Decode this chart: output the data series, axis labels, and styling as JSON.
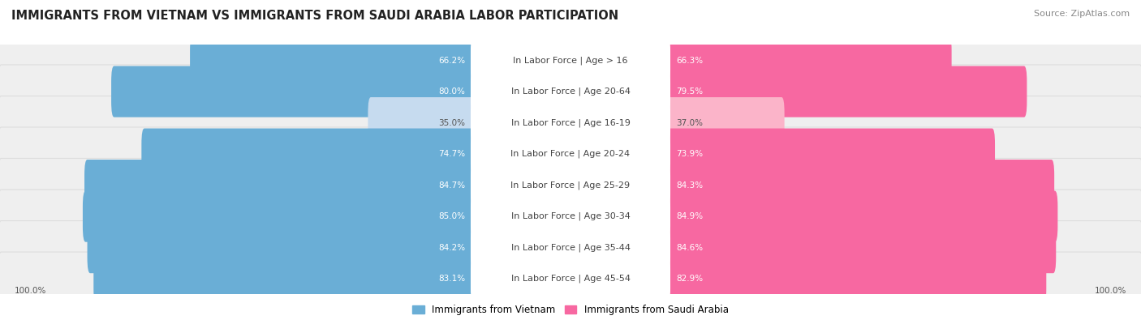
{
  "title": "IMMIGRANTS FROM VIETNAM VS IMMIGRANTS FROM SAUDI ARABIA LABOR PARTICIPATION",
  "source": "Source: ZipAtlas.com",
  "categories": [
    "In Labor Force | Age > 16",
    "In Labor Force | Age 20-64",
    "In Labor Force | Age 16-19",
    "In Labor Force | Age 20-24",
    "In Labor Force | Age 25-29",
    "In Labor Force | Age 30-34",
    "In Labor Force | Age 35-44",
    "In Labor Force | Age 45-54"
  ],
  "vietnam_values": [
    66.2,
    80.0,
    35.0,
    74.7,
    84.7,
    85.0,
    84.2,
    83.1
  ],
  "saudi_values": [
    66.3,
    79.5,
    37.0,
    73.9,
    84.3,
    84.9,
    84.6,
    82.9
  ],
  "vietnam_color": "#6aaed6",
  "vietnam_color_light": "#c6dbef",
  "saudi_color": "#f768a1",
  "saudi_color_light": "#fbb4c9",
  "row_bg_color": "#efefef",
  "row_bg_edge": "#dddddd",
  "max_value": 100.0,
  "label_bottom_left": "100.0%",
  "label_bottom_right": "100.0%",
  "legend_vietnam": "Immigrants from Vietnam",
  "legend_saudi": "Immigrants from Saudi Arabia",
  "title_fontsize": 10.5,
  "source_fontsize": 8,
  "bar_label_fontsize": 7.5,
  "cat_label_fontsize": 8,
  "legend_fontsize": 8.5,
  "light_rows": [
    2
  ]
}
